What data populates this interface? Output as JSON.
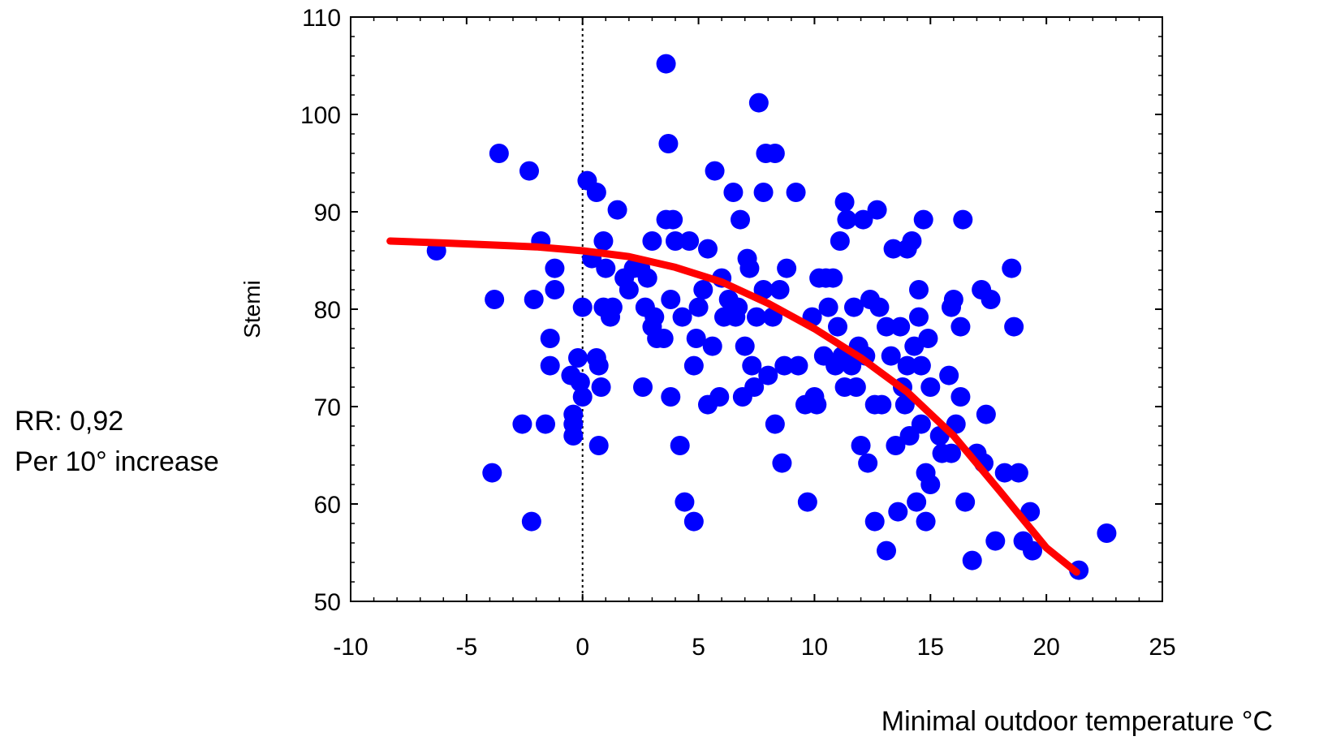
{
  "chart_data": {
    "type": "scatter",
    "title": "",
    "xlabel": "Minimal outdoor temperature °C",
    "ylabel": "Stemi",
    "xlim": [
      -10,
      25
    ],
    "ylim": [
      50,
      110
    ],
    "x_ticks": [
      "-10",
      "-5",
      "0",
      "5",
      "10",
      "15",
      "20",
      "25"
    ],
    "y_ticks": [
      "50",
      "60",
      "70",
      "80",
      "90",
      "100",
      "110"
    ],
    "grid": false,
    "reference_line_x": 0,
    "colors": {
      "points": "#0000ff",
      "curve": "#ff0000",
      "axes": "#000000"
    },
    "annotation": {
      "line1": "RR: 0,92",
      "line2": "Per 10° increase"
    },
    "series": [
      {
        "type": "scatter",
        "points": [
          [
            -6.3,
            86
          ],
          [
            -3.6,
            96
          ],
          [
            -3.8,
            81
          ],
          [
            -3.9,
            63.2
          ],
          [
            -2.3,
            94.2
          ],
          [
            -2.6,
            68.2
          ],
          [
            -2.2,
            58.2
          ],
          [
            -2.1,
            81
          ],
          [
            -1.8,
            87
          ],
          [
            -1.6,
            68.2
          ],
          [
            -1.4,
            77
          ],
          [
            -1.4,
            74.2
          ],
          [
            -1.2,
            84.2
          ],
          [
            -1.2,
            82
          ],
          [
            -0.5,
            73.2
          ],
          [
            -0.4,
            69.2
          ],
          [
            -0.4,
            68.2
          ],
          [
            -0.4,
            67
          ],
          [
            -0.2,
            75
          ],
          [
            -0.1,
            72.5
          ],
          [
            0,
            71
          ],
          [
            0,
            80.2
          ],
          [
            0.2,
            93.2
          ],
          [
            0.4,
            85.2
          ],
          [
            0.6,
            92
          ],
          [
            0.6,
            75
          ],
          [
            0.7,
            74.2
          ],
          [
            0.7,
            66
          ],
          [
            0.8,
            72
          ],
          [
            0.9,
            87
          ],
          [
            0.9,
            80.2
          ],
          [
            1.0,
            84.2
          ],
          [
            1.2,
            79.2
          ],
          [
            1.3,
            80.2
          ],
          [
            1.5,
            90.2
          ],
          [
            1.8,
            83.2
          ],
          [
            2.0,
            82
          ],
          [
            2.2,
            84.2
          ],
          [
            2.5,
            84.2
          ],
          [
            2.6,
            72
          ],
          [
            2.7,
            80.2
          ],
          [
            2.8,
            83.2
          ],
          [
            3.0,
            87
          ],
          [
            3.0,
            78.2
          ],
          [
            3.1,
            79.2
          ],
          [
            3.2,
            77
          ],
          [
            3.5,
            77
          ],
          [
            3.6,
            105.2
          ],
          [
            3.6,
            89.2
          ],
          [
            3.7,
            97
          ],
          [
            3.8,
            81
          ],
          [
            3.8,
            71
          ],
          [
            3.9,
            89.2
          ],
          [
            4.0,
            87
          ],
          [
            4.2,
            66
          ],
          [
            4.3,
            79.2
          ],
          [
            4.4,
            60.2
          ],
          [
            4.6,
            87
          ],
          [
            4.8,
            74.2
          ],
          [
            4.8,
            58.2
          ],
          [
            4.9,
            77
          ],
          [
            5.0,
            80.2
          ],
          [
            5.2,
            82
          ],
          [
            5.4,
            86.2
          ],
          [
            5.4,
            70.2
          ],
          [
            5.6,
            76.2
          ],
          [
            5.7,
            94.2
          ],
          [
            5.9,
            71
          ],
          [
            6.0,
            83.2
          ],
          [
            6.1,
            79.2
          ],
          [
            6.3,
            81
          ],
          [
            6.5,
            92
          ],
          [
            6.6,
            79.2
          ],
          [
            6.7,
            80.2
          ],
          [
            6.8,
            89.2
          ],
          [
            6.9,
            71
          ],
          [
            7.0,
            76.2
          ],
          [
            7.1,
            85.2
          ],
          [
            7.2,
            84.2
          ],
          [
            7.3,
            74.2
          ],
          [
            7.4,
            72
          ],
          [
            7.5,
            79.2
          ],
          [
            7.6,
            101.2
          ],
          [
            7.8,
            82
          ],
          [
            7.8,
            92
          ],
          [
            7.9,
            96
          ],
          [
            8.0,
            73.2
          ],
          [
            8.2,
            79.2
          ],
          [
            8.3,
            96
          ],
          [
            8.3,
            68.2
          ],
          [
            8.5,
            82
          ],
          [
            8.6,
            64.2
          ],
          [
            8.7,
            74.2
          ],
          [
            8.8,
            84.2
          ],
          [
            9.2,
            92
          ],
          [
            9.3,
            74.2
          ],
          [
            9.6,
            70.2
          ],
          [
            9.7,
            60.2
          ],
          [
            9.9,
            79.2
          ],
          [
            10.0,
            71
          ],
          [
            10.1,
            70.2
          ],
          [
            10.2,
            83.2
          ],
          [
            10.4,
            75.2
          ],
          [
            10.5,
            83.2
          ],
          [
            10.6,
            80.2
          ],
          [
            10.8,
            83.2
          ],
          [
            10.9,
            74.2
          ],
          [
            11.0,
            78.2
          ],
          [
            11.1,
            87
          ],
          [
            11.2,
            75.2
          ],
          [
            11.3,
            91
          ],
          [
            11.3,
            72
          ],
          [
            11.4,
            89.2
          ],
          [
            11.6,
            74.2
          ],
          [
            11.7,
            80.2
          ],
          [
            11.8,
            72
          ],
          [
            11.9,
            76.2
          ],
          [
            12.0,
            66
          ],
          [
            12.1,
            89.2
          ],
          [
            12.2,
            75.2
          ],
          [
            12.3,
            64.2
          ],
          [
            12.4,
            81
          ],
          [
            12.6,
            70.2
          ],
          [
            12.6,
            58.2
          ],
          [
            12.7,
            90.2
          ],
          [
            12.8,
            80.2
          ],
          [
            12.9,
            70.2
          ],
          [
            13.1,
            78.2
          ],
          [
            13.1,
            55.2
          ],
          [
            13.3,
            75.2
          ],
          [
            13.4,
            86.2
          ],
          [
            13.5,
            66
          ],
          [
            13.6,
            59.2
          ],
          [
            13.7,
            78.2
          ],
          [
            13.8,
            72
          ],
          [
            13.9,
            70.2
          ],
          [
            14.0,
            86.2
          ],
          [
            14.0,
            74.2
          ],
          [
            14.1,
            67
          ],
          [
            14.2,
            87
          ],
          [
            14.3,
            76.2
          ],
          [
            14.4,
            60.2
          ],
          [
            14.5,
            82
          ],
          [
            14.5,
            79.2
          ],
          [
            14.6,
            74.2
          ],
          [
            14.6,
            68.2
          ],
          [
            14.7,
            89.2
          ],
          [
            14.8,
            58.2
          ],
          [
            14.8,
            63.2
          ],
          [
            14.9,
            77
          ],
          [
            15.0,
            72
          ],
          [
            15.0,
            62
          ],
          [
            15.4,
            67
          ],
          [
            15.5,
            65.2
          ],
          [
            15.8,
            73.2
          ],
          [
            15.9,
            80.2
          ],
          [
            15.9,
            65.2
          ],
          [
            16.0,
            81
          ],
          [
            16.1,
            68.2
          ],
          [
            16.3,
            71
          ],
          [
            16.3,
            78.2
          ],
          [
            16.4,
            89.2
          ],
          [
            16.5,
            60.2
          ],
          [
            16.8,
            54.2
          ],
          [
            17.0,
            65.2
          ],
          [
            17.2,
            82
          ],
          [
            17.3,
            64.2
          ],
          [
            17.4,
            69.2
          ],
          [
            17.6,
            81
          ],
          [
            17.8,
            56.2
          ],
          [
            18.2,
            63.2
          ],
          [
            18.5,
            84.2
          ],
          [
            18.6,
            78.2
          ],
          [
            18.8,
            63.2
          ],
          [
            19.0,
            56.2
          ],
          [
            19.3,
            59.2
          ],
          [
            19.4,
            55.2
          ],
          [
            21.4,
            53.2
          ],
          [
            22.6,
            57
          ]
        ]
      },
      {
        "type": "line",
        "curve": [
          [
            -8.3,
            87
          ],
          [
            -6,
            86.8
          ],
          [
            -4,
            86.6
          ],
          [
            -2,
            86.4
          ],
          [
            0,
            86
          ],
          [
            2,
            85.4
          ],
          [
            4,
            84.3
          ],
          [
            6,
            82.8
          ],
          [
            8,
            80.6
          ],
          [
            10,
            78
          ],
          [
            12,
            75
          ],
          [
            14,
            71.5
          ],
          [
            16,
            67
          ],
          [
            18,
            61.3
          ],
          [
            20,
            55.5
          ],
          [
            21.3,
            53
          ]
        ]
      }
    ]
  }
}
